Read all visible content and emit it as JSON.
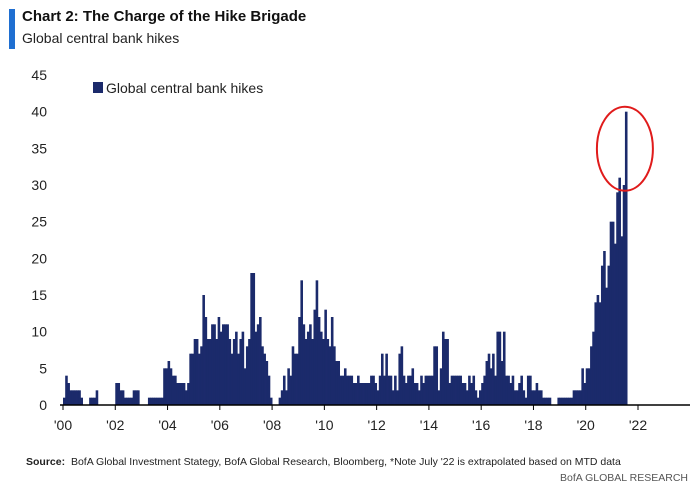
{
  "header": {
    "title": "Chart 2: The Charge of the Hike Brigade",
    "subtitle": "Global central bank hikes"
  },
  "footer": {
    "source_label": "Source:",
    "source_text": "BofA Global Investment Stategy, BofA Global Research, Bloomberg, *Note July '22 is extrapolated based on MTD data",
    "brand": "BofA GLOBAL RESEARCH"
  },
  "colors": {
    "bars": "#1b2a6b",
    "accent": "#1f6fd1",
    "highlight_circle": "#e01b1b"
  },
  "chart_data": {
    "type": "bar",
    "title": "Chart 2: The Charge of the Hike Brigade",
    "subtitle": "Global central bank hikes",
    "xlabel": "",
    "ylabel": "",
    "ylim": [
      0,
      45
    ],
    "yticks": [
      0,
      5,
      10,
      15,
      20,
      25,
      30,
      35,
      40,
      45
    ],
    "x_start": 2000,
    "x_end": 2022.58,
    "xticks": [
      "'00",
      "'02",
      "'04",
      "'06",
      "'08",
      "'10",
      "'12",
      "'14",
      "'16",
      "'18",
      "'20",
      "'22"
    ],
    "legend": {
      "position": "top-left",
      "entries": [
        "Global central bank hikes"
      ]
    },
    "grid": false,
    "annotation": "red circle around July '22 peak",
    "series": [
      {
        "name": "Global central bank hikes",
        "frequency": "monthly",
        "start": "Jan 2000",
        "values": [
          1,
          4,
          3,
          2,
          2,
          2,
          2,
          2,
          1,
          0,
          0,
          0,
          1,
          1,
          1,
          2,
          0,
          0,
          0,
          0,
          0,
          0,
          0,
          0,
          3,
          3,
          2,
          2,
          1,
          1,
          1,
          1,
          2,
          2,
          2,
          0,
          0,
          0,
          0,
          1,
          1,
          1,
          1,
          1,
          1,
          1,
          5,
          5,
          6,
          5,
          4,
          4,
          3,
          3,
          3,
          3,
          2,
          3,
          7,
          7,
          9,
          9,
          7,
          8,
          15,
          12,
          9,
          9,
          11,
          11,
          9,
          12,
          10,
          11,
          11,
          11,
          9,
          7,
          9,
          10,
          7,
          9,
          10,
          5,
          8,
          9,
          18,
          18,
          10,
          11,
          12,
          8,
          7,
          6,
          4,
          1,
          0,
          0,
          0,
          1,
          2,
          4,
          2,
          5,
          4,
          8,
          7,
          7,
          12,
          17,
          11,
          9,
          10,
          11,
          9,
          13,
          17,
          12,
          10,
          9,
          13,
          9,
          8,
          12,
          8,
          6,
          6,
          4,
          4,
          5,
          4,
          4,
          4,
          3,
          3,
          4,
          3,
          3,
          3,
          3,
          3,
          4,
          4,
          3,
          2,
          4,
          7,
          4,
          7,
          4,
          4,
          2,
          4,
          2,
          7,
          8,
          4,
          3,
          4,
          4,
          5,
          3,
          3,
          2,
          4,
          3,
          4,
          4,
          4,
          4,
          8,
          8,
          2,
          5,
          10,
          9,
          9,
          3,
          4,
          4,
          4,
          4,
          4,
          3,
          3,
          2,
          4,
          3,
          4,
          2,
          1,
          2,
          3,
          4,
          6,
          7,
          5,
          7,
          4,
          10,
          10,
          6,
          10,
          4,
          4,
          3,
          4,
          2,
          2,
          3,
          4,
          2,
          1,
          4,
          4,
          2,
          2,
          3,
          2,
          2,
          1,
          1,
          1,
          1,
          0,
          0,
          0,
          1,
          1,
          1,
          1,
          1,
          1,
          1,
          2,
          2,
          2,
          2,
          5,
          3,
          5,
          5,
          8,
          10,
          14,
          15,
          14,
          19,
          21,
          16,
          19,
          25,
          25,
          22,
          29,
          31,
          23,
          30,
          40
        ]
      }
    ]
  }
}
